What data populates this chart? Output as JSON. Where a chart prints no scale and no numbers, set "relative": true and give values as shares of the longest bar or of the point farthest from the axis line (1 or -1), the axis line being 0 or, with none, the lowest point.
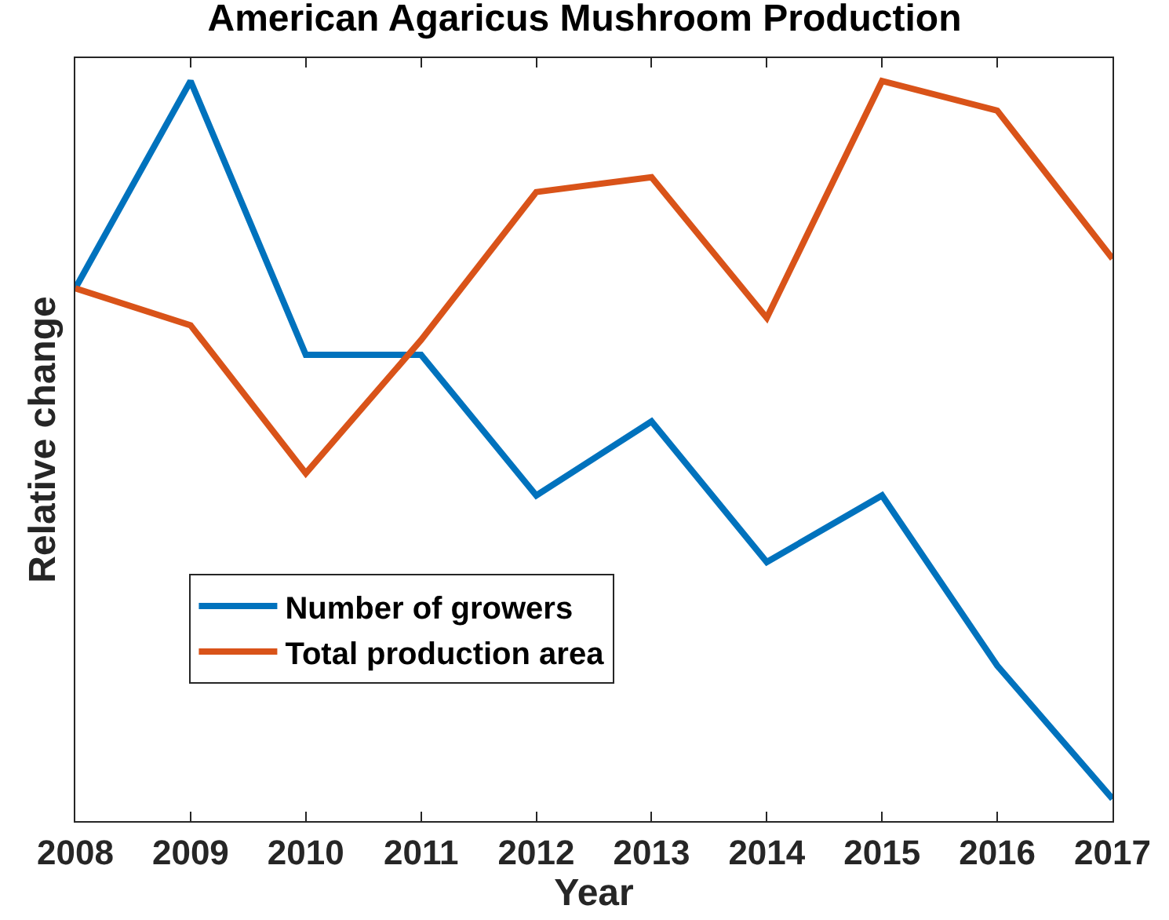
{
  "chart_data": {
    "type": "line",
    "title": "American Agaricus Mushroom Production",
    "xlabel": "Year",
    "ylabel": "Relative change",
    "relative": true,
    "x": [
      2008,
      2009,
      2010,
      2011,
      2012,
      2013,
      2014,
      2015,
      2016,
      2017
    ],
    "xlim": [
      2008,
      2017
    ],
    "xticks": [
      2008,
      2009,
      2010,
      2011,
      2012,
      2013,
      2014,
      2015,
      2016,
      2017
    ],
    "series": [
      {
        "name": "Number of growers",
        "color": "#0072bd",
        "values": [
          0.72,
          1.0,
          0.63,
          0.63,
          0.44,
          0.54,
          0.35,
          0.44,
          0.21,
          0.03
        ]
      },
      {
        "name": "Total production area",
        "color": "#d95319",
        "values": [
          0.72,
          0.67,
          0.47,
          0.65,
          0.85,
          0.87,
          0.68,
          1.0,
          0.96,
          0.76
        ]
      }
    ],
    "legend": "bottom left",
    "marker": "none",
    "line_style": "solid"
  }
}
